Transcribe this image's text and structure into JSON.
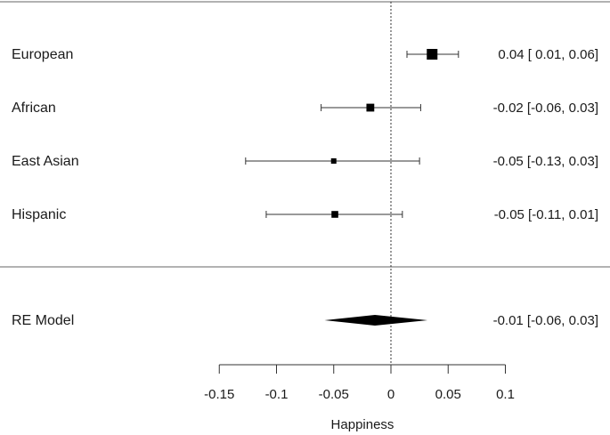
{
  "chart_data": {
    "type": "forest",
    "xlabel": "Happiness",
    "xlim": [
      -0.15,
      0.1
    ],
    "x_ticks": [
      -0.15,
      -0.1,
      -0.05,
      0,
      0.05,
      0.1
    ],
    "x_tick_labels": [
      "-0.15",
      "-0.1",
      "-0.05",
      "0",
      "0.05",
      "0.1"
    ],
    "reference_line": 0,
    "studies": [
      {
        "label": "European",
        "estimate": 0.036,
        "ci_low": 0.014,
        "ci_high": 0.059,
        "weight": 1.0,
        "text": "0.04 [ 0.01, 0.06]"
      },
      {
        "label": "African",
        "estimate": -0.018,
        "ci_low": -0.061,
        "ci_high": 0.026,
        "weight": 0.6,
        "text": "-0.02 [-0.06, 0.03]"
      },
      {
        "label": "East Asian",
        "estimate": -0.05,
        "ci_low": -0.127,
        "ci_high": 0.025,
        "weight": 0.25,
        "text": "-0.05 [-0.13, 0.03]"
      },
      {
        "label": "Hispanic",
        "estimate": -0.049,
        "ci_low": -0.109,
        "ci_high": 0.01,
        "weight": 0.45,
        "text": "-0.05 [-0.11, 0.01]"
      }
    ],
    "summary": {
      "label": "RE Model",
      "estimate": -0.014,
      "ci_low": -0.058,
      "ci_high": 0.032,
      "text": "-0.01 [-0.06, 0.03]"
    }
  }
}
